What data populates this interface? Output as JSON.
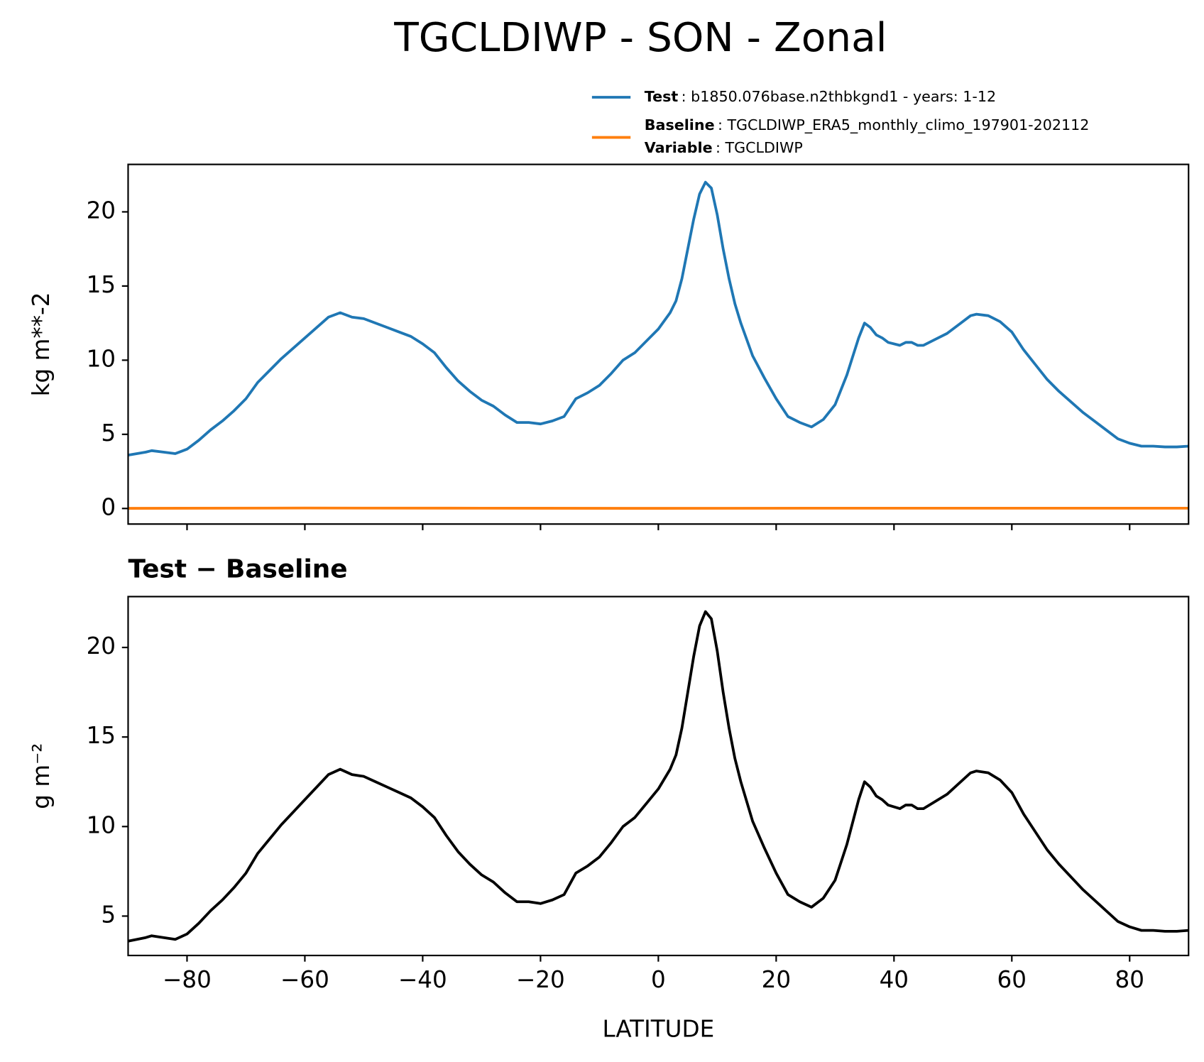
{
  "title": "TGCLDIWP - SON - Zonal",
  "chart_data": [
    {
      "type": "line",
      "ylabel": "kg m**-2",
      "x": [
        -90,
        -87,
        -86,
        -84,
        -82,
        -80,
        -78,
        -76,
        -74,
        -72,
        -70,
        -68,
        -66,
        -64,
        -62,
        -60,
        -58,
        -56,
        -54,
        -52,
        -50,
        -48,
        -46,
        -44,
        -42,
        -40,
        -38,
        -36,
        -34,
        -32,
        -30,
        -28,
        -26,
        -24,
        -22,
        -20,
        -18,
        -16,
        -14,
        -12,
        -10,
        -8,
        -6,
        -4,
        -2,
        0,
        2,
        3,
        4,
        5,
        6,
        7,
        8,
        9,
        10,
        11,
        12,
        13,
        14,
        16,
        18,
        20,
        22,
        24,
        26,
        28,
        30,
        32,
        34,
        35,
        36,
        37,
        38,
        39,
        41,
        42,
        43,
        44,
        45,
        47,
        49,
        51,
        53,
        54,
        56,
        58,
        60,
        62,
        64,
        66,
        68,
        70,
        72,
        74,
        76,
        78,
        80,
        82,
        84,
        86,
        88,
        90
      ],
      "series": [
        {
          "name": "Test",
          "description": ": b1850.076base.n2thbkgnd1 - years: 1-12",
          "color": "#1f77b4",
          "values": [
            3.6,
            3.8,
            3.9,
            3.8,
            3.7,
            4.0,
            4.6,
            5.3,
            5.9,
            6.6,
            7.4,
            8.5,
            9.3,
            10.1,
            10.8,
            11.5,
            12.2,
            12.9,
            13.2,
            12.9,
            12.8,
            12.5,
            12.2,
            11.9,
            11.6,
            11.1,
            10.5,
            9.5,
            8.6,
            7.9,
            7.3,
            6.9,
            6.3,
            5.8,
            5.8,
            5.7,
            5.9,
            6.2,
            7.4,
            7.8,
            8.3,
            9.1,
            10.0,
            10.5,
            11.3,
            12.1,
            13.2,
            14.0,
            15.5,
            17.5,
            19.5,
            21.2,
            22.0,
            21.6,
            19.8,
            17.5,
            15.5,
            13.8,
            12.5,
            10.3,
            8.8,
            7.4,
            6.2,
            5.8,
            5.5,
            6.0,
            7.0,
            9.0,
            11.5,
            12.5,
            12.2,
            11.7,
            11.5,
            11.2,
            11.0,
            11.2,
            11.2,
            11.0,
            11.0,
            11.4,
            11.8,
            12.4,
            13.0,
            13.1,
            13.0,
            12.6,
            11.9,
            10.7,
            9.7,
            8.7,
            7.9,
            7.2,
            6.5,
            5.9,
            5.3,
            4.7,
            4.4,
            4.2,
            4.2,
            4.15,
            4.15,
            4.2
          ]
        },
        {
          "name": "Baseline",
          "description": ": TGCLDIWP_ERA5_monthly_climo_197901-202112",
          "color": "#ff7f0e",
          "variable": {
            "name": "Variable",
            "description": ": TGCLDIWP"
          },
          "x": [
            -90,
            -60,
            -30,
            0,
            30,
            60,
            90
          ],
          "values": [
            0.01,
            0.03,
            0.02,
            0.01,
            0.02,
            0.02,
            0.02
          ]
        }
      ],
      "xlim": [
        -90,
        90
      ],
      "xticks": [
        -80,
        -60,
        -40,
        -20,
        0,
        20,
        40,
        60,
        80
      ],
      "ylim": [
        -1.05,
        23.2
      ],
      "yticks": [
        0,
        5,
        10,
        15,
        20
      ]
    },
    {
      "type": "line",
      "title": "Test − Baseline",
      "ylabel": "g m⁻²",
      "xlabel": "LATITUDE",
      "x": [
        -90,
        -87,
        -86,
        -84,
        -82,
        -80,
        -78,
        -76,
        -74,
        -72,
        -70,
        -68,
        -66,
        -64,
        -62,
        -60,
        -58,
        -56,
        -54,
        -52,
        -50,
        -48,
        -46,
        -44,
        -42,
        -40,
        -38,
        -36,
        -34,
        -32,
        -30,
        -28,
        -26,
        -24,
        -22,
        -20,
        -18,
        -16,
        -14,
        -12,
        -10,
        -8,
        -6,
        -4,
        -2,
        0,
        2,
        3,
        4,
        5,
        6,
        7,
        8,
        9,
        10,
        11,
        12,
        13,
        14,
        16,
        18,
        20,
        22,
        24,
        26,
        28,
        30,
        32,
        34,
        35,
        36,
        37,
        38,
        39,
        41,
        42,
        43,
        44,
        45,
        47,
        49,
        51,
        53,
        54,
        56,
        58,
        60,
        62,
        64,
        66,
        68,
        70,
        72,
        74,
        76,
        78,
        80,
        82,
        84,
        86,
        88,
        90
      ],
      "series": [
        {
          "color": "#000000",
          "values": [
            3.6,
            3.8,
            3.9,
            3.8,
            3.7,
            4.0,
            4.6,
            5.3,
            5.9,
            6.6,
            7.4,
            8.5,
            9.3,
            10.1,
            10.8,
            11.5,
            12.2,
            12.9,
            13.2,
            12.9,
            12.8,
            12.5,
            12.2,
            11.9,
            11.6,
            11.1,
            10.5,
            9.5,
            8.6,
            7.9,
            7.3,
            6.9,
            6.3,
            5.8,
            5.8,
            5.7,
            5.9,
            6.2,
            7.4,
            7.8,
            8.3,
            9.1,
            10.0,
            10.5,
            11.3,
            12.1,
            13.2,
            14.0,
            15.5,
            17.5,
            19.5,
            21.2,
            22.0,
            21.6,
            19.8,
            17.5,
            15.5,
            13.8,
            12.5,
            10.3,
            8.8,
            7.4,
            6.2,
            5.8,
            5.5,
            6.0,
            7.0,
            9.0,
            11.5,
            12.5,
            12.2,
            11.7,
            11.5,
            11.2,
            11.0,
            11.2,
            11.2,
            11.0,
            11.0,
            11.4,
            11.8,
            12.4,
            13.0,
            13.1,
            13.0,
            12.6,
            11.9,
            10.7,
            9.7,
            8.7,
            7.9,
            7.2,
            6.5,
            5.9,
            5.3,
            4.7,
            4.4,
            4.2,
            4.2,
            4.15,
            4.15,
            4.2
          ]
        }
      ],
      "xlim": [
        -90,
        90
      ],
      "xticks": [
        {
          "value": -80,
          "label": "−80"
        },
        {
          "value": -60,
          "label": "−60"
        },
        {
          "value": -40,
          "label": "−40"
        },
        {
          "value": -20,
          "label": "−20"
        },
        0,
        20,
        40,
        60,
        80
      ],
      "ylim": [
        2.8,
        22.84
      ],
      "yticks": [
        5,
        10,
        15,
        20
      ]
    }
  ]
}
